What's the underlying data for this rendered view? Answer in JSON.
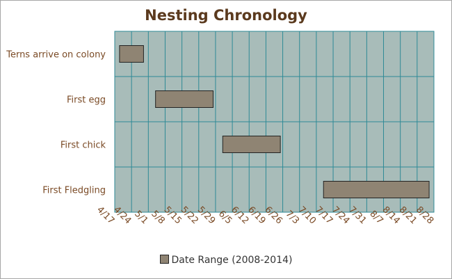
{
  "chart_data": {
    "type": "bar",
    "orientation": "horizontal",
    "title": "Nesting Chronology",
    "xlabel": "",
    "ylabel": "",
    "categories": [
      "Terns arrive on colony",
      "First egg",
      "First chick",
      "First Fledgling"
    ],
    "series": [
      {
        "name": "Date Range (2008-2014)",
        "ranges": [
          {
            "start": "4/19",
            "end": "4/29"
          },
          {
            "start": "5/4",
            "end": "5/28"
          },
          {
            "start": "6/1",
            "end": "6/25"
          },
          {
            "start": "7/13",
            "end": "8/26"
          }
        ]
      }
    ],
    "x_ticks": [
      "4/17",
      "4/24",
      "5/1",
      "5/8",
      "5/15",
      "5/22",
      "5/29",
      "6/5",
      "6/12",
      "6/19",
      "6/26",
      "7/3",
      "7/10",
      "7/17",
      "7/24",
      "7/31",
      "8/7",
      "8/14",
      "8/21",
      "8/28"
    ],
    "xlim": [
      "4/17",
      "8/28"
    ],
    "grid": true,
    "legend": "bottom",
    "colors": {
      "plot_background": "#a8bcb9",
      "grid": "#2e8a96",
      "bar_fill": "#8f8473",
      "bar_edge": "#222222",
      "title": "#5b3a1e",
      "labels": "#7a4a25"
    }
  }
}
